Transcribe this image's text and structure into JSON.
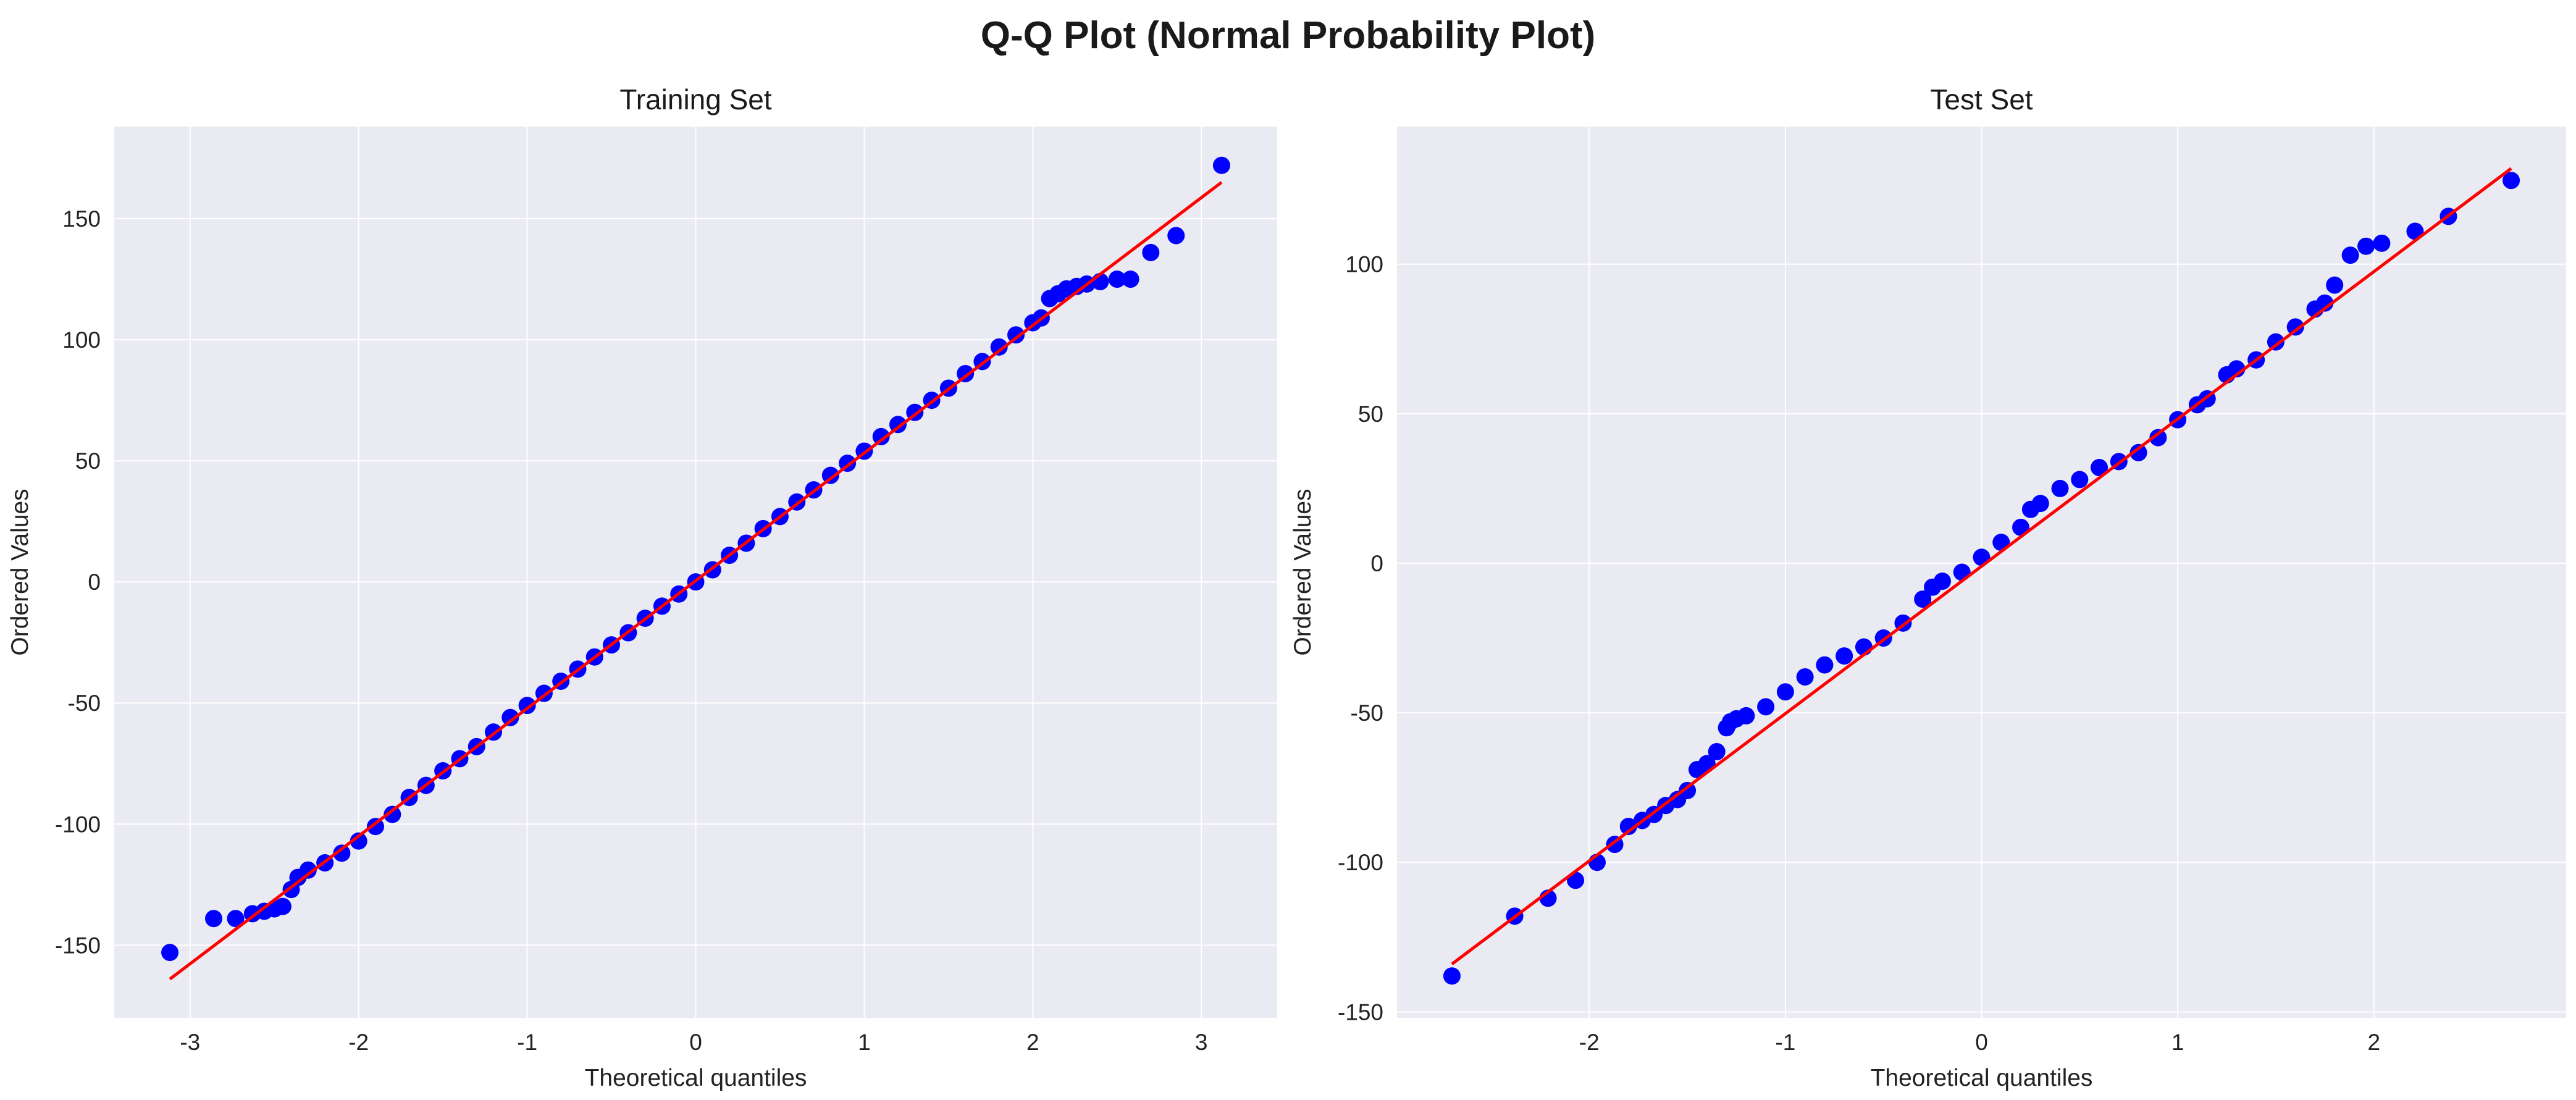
{
  "figure_title": "Q-Q Plot (Normal Probability Plot)",
  "colors": {
    "panel_background": "#eaeaf2",
    "grid": "#ffffff",
    "points": "#0000ff",
    "fit_line": "#ff0000"
  },
  "chart_data": [
    {
      "type": "scatter",
      "title": "Training Set",
      "xlabel": "Theoretical quantiles",
      "ylabel": "Ordered Values",
      "xlim": [
        -3.45,
        3.45
      ],
      "ylim": [
        -180,
        188
      ],
      "xticks": [
        -3,
        -2,
        -1,
        0,
        1,
        2,
        3
      ],
      "yticks": [
        -150,
        -100,
        -50,
        0,
        50,
        100,
        150
      ],
      "grid": true,
      "reference_line": {
        "x": [
          -3.12,
          3.12
        ],
        "y": [
          -164,
          165
        ]
      },
      "series": [
        {
          "x": [
            -3.12,
            -2.86,
            -2.73,
            -2.63,
            -2.56,
            -2.5,
            -2.45,
            -2.4,
            -2.36,
            -2.3,
            -2.2,
            -2.1,
            -2.0,
            -1.9,
            -1.8,
            -1.7,
            -1.6,
            -1.5,
            -1.4,
            -1.3,
            -1.2,
            -1.1,
            -1.0,
            -0.9,
            -0.8,
            -0.7,
            -0.6,
            -0.5,
            -0.4,
            -0.3,
            -0.2,
            -0.1,
            0.0,
            0.1,
            0.2,
            0.3,
            0.4,
            0.5,
            0.6,
            0.7,
            0.8,
            0.9,
            1.0,
            1.1,
            1.2,
            1.3,
            1.4,
            1.5,
            1.6,
            1.7,
            1.8,
            1.9,
            2.0,
            2.05,
            2.1,
            2.15,
            2.2,
            2.26,
            2.32,
            2.4,
            2.5,
            2.58,
            2.7,
            2.85,
            3.12
          ],
          "y": [
            -153,
            -139,
            -139,
            -137,
            -136,
            -135,
            -134,
            -127,
            -122,
            -119,
            -116,
            -112,
            -107,
            -101,
            -96,
            -89,
            -84,
            -78,
            -73,
            -68,
            -62,
            -56,
            -51,
            -46,
            -41,
            -36,
            -31,
            -26,
            -21,
            -15,
            -10,
            -5,
            0,
            5,
            11,
            16,
            22,
            27,
            33,
            38,
            44,
            49,
            54,
            60,
            65,
            70,
            75,
            80,
            86,
            91,
            97,
            102,
            107,
            109,
            117,
            119,
            121,
            122,
            123,
            124,
            125,
            125,
            136,
            143,
            172
          ]
        }
      ]
    },
    {
      "type": "scatter",
      "title": "Test Set",
      "xlabel": "Theoretical quantiles",
      "ylabel": "Ordered Values",
      "xlim": [
        -2.98,
        2.98
      ],
      "ylim": [
        -152,
        146
      ],
      "xticks": [
        -2,
        -1,
        0,
        1,
        2
      ],
      "yticks": [
        -150,
        -100,
        -50,
        0,
        50,
        100
      ],
      "grid": true,
      "reference_line": {
        "x": [
          -2.7,
          2.7
        ],
        "y": [
          -134,
          132
        ]
      },
      "series": [
        {
          "x": [
            -2.7,
            -2.38,
            -2.21,
            -2.07,
            -1.96,
            -1.87,
            -1.8,
            -1.73,
            -1.67,
            -1.61,
            -1.55,
            -1.5,
            -1.45,
            -1.4,
            -1.35,
            -1.3,
            -1.28,
            -1.25,
            -1.2,
            -1.1,
            -1.0,
            -0.9,
            -0.8,
            -0.7,
            -0.6,
            -0.5,
            -0.4,
            -0.3,
            -0.25,
            -0.2,
            -0.1,
            0.0,
            0.1,
            0.2,
            0.25,
            0.3,
            0.4,
            0.5,
            0.6,
            0.7,
            0.8,
            0.9,
            1.0,
            1.1,
            1.15,
            1.25,
            1.3,
            1.4,
            1.5,
            1.6,
            1.7,
            1.75,
            1.8,
            1.88,
            1.96,
            2.04,
            2.21,
            2.38,
            2.7
          ],
          "y": [
            -138,
            -118,
            -112,
            -106,
            -100,
            -94,
            -88,
            -86,
            -84,
            -81,
            -79,
            -76,
            -69,
            -67,
            -63,
            -55,
            -53,
            -52,
            -51,
            -48,
            -43,
            -38,
            -34,
            -31,
            -28,
            -25,
            -20,
            -12,
            -8,
            -6,
            -3,
            2,
            7,
            12,
            18,
            20,
            25,
            28,
            32,
            34,
            37,
            42,
            48,
            53,
            55,
            63,
            65,
            68,
            74,
            79,
            85,
            87,
            93,
            103,
            106,
            107,
            111,
            116,
            128
          ]
        }
      ]
    }
  ]
}
